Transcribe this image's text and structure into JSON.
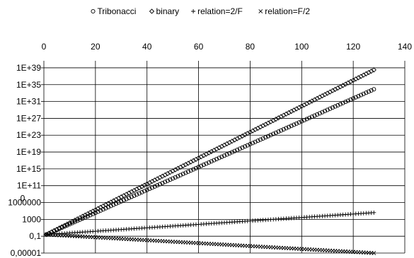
{
  "chart_data": {
    "type": "scatter",
    "title": "",
    "legend": {
      "placement": "top",
      "entries": [
        {
          "symbol": "circle",
          "name": "Tribonacci"
        },
        {
          "symbol": "diamond",
          "name": "binary"
        },
        {
          "symbol": "plus",
          "name": "relation=2/F"
        },
        {
          "symbol": "x",
          "name": "relation=F/2"
        }
      ]
    },
    "x_axis": {
      "position": "top",
      "range": [
        0,
        140
      ],
      "ticks": [
        0,
        20,
        40,
        60,
        80,
        100,
        120,
        140
      ],
      "tick_labels": [
        "0",
        "20",
        "40",
        "60",
        "80",
        "100",
        "120",
        "140"
      ]
    },
    "y_axis": {
      "scale": "log",
      "range_log10": [
        -5,
        40
      ],
      "tick_labels": [
        {
          "exp": 39,
          "label": "1E+39"
        },
        {
          "exp": 35,
          "label": "1E+35"
        },
        {
          "exp": 31,
          "label": "1E+31"
        },
        {
          "exp": 27,
          "label": "1E+27"
        },
        {
          "exp": 23,
          "label": "1E+23"
        },
        {
          "exp": 19,
          "label": "1E+19"
        },
        {
          "exp": 15,
          "label": "1E+15"
        },
        {
          "exp": 11,
          "label": "1E+11"
        },
        {
          "exp": 7,
          "label": "1000000"
        },
        {
          "exp": 3,
          "label": "1000"
        },
        {
          "exp": -1,
          "label": "0,1"
        },
        {
          "exp": -5,
          "label": "0,00001"
        }
      ],
      "stray_labels": [
        {
          "exp": 8,
          "label": "0"
        }
      ],
      "grid": true
    },
    "grid": {
      "vertical": true,
      "horizontal": true
    },
    "series": [
      {
        "name": "Tribonacci",
        "marker": "circle",
        "x_range": [
          1,
          128
        ],
        "y_log10_start": -0.6,
        "y_log10_end": 33.9
      },
      {
        "name": "binary",
        "marker": "diamond",
        "x_range": [
          1,
          128
        ],
        "y_log10_start": -0.6,
        "y_log10_end": 38.5
      },
      {
        "name": "relation=2/F",
        "marker": "plus",
        "x_range": [
          1,
          128
        ],
        "y_log10_start": -0.6,
        "y_log10_end": 4.6
      },
      {
        "name": "relation=F/2",
        "marker": "x",
        "x_range": [
          1,
          128
        ],
        "y_log10_start": -0.6,
        "y_log10_end": -5.0
      }
    ]
  }
}
